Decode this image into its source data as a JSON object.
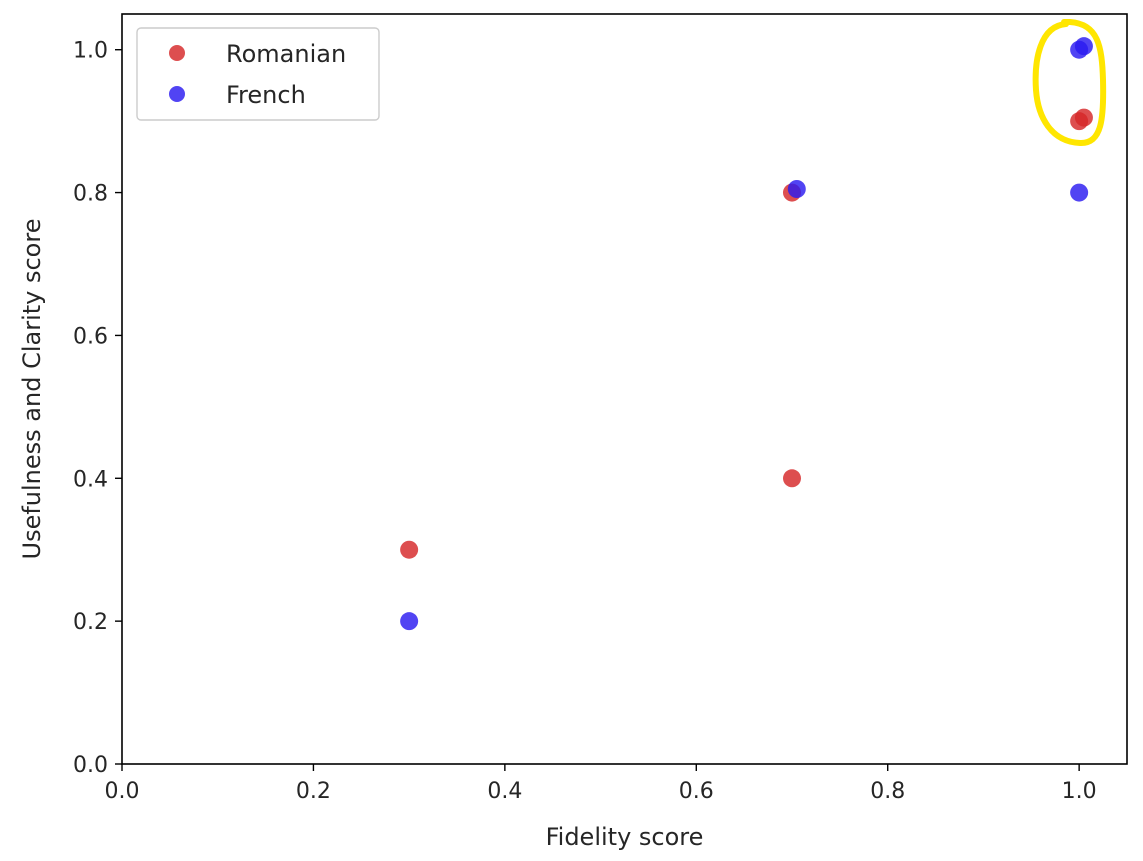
{
  "chart_data": {
    "type": "scatter",
    "title": "",
    "xlabel": "Fidelity score",
    "ylabel": "Usefulness and Clarity score",
    "xlim": [
      0.0,
      1.05
    ],
    "ylim": [
      0.0,
      1.05
    ],
    "xticks": [
      "0.0",
      "0.2",
      "0.4",
      "0.6",
      "0.8",
      "1.0"
    ],
    "yticks": [
      "0.0",
      "0.2",
      "0.4",
      "0.6",
      "0.8",
      "1.0"
    ],
    "grid": false,
    "legend_position": "top-left",
    "series": [
      {
        "name": "Romanian",
        "color": "#d62728",
        "points": [
          {
            "x": 0.3,
            "y": 0.3
          },
          {
            "x": 0.7,
            "y": 0.8
          },
          {
            "x": 0.7,
            "y": 0.4
          },
          {
            "x": 1.0,
            "y": 0.9
          },
          {
            "x": 1.005,
            "y": 0.905
          }
        ]
      },
      {
        "name": "French",
        "color": "#2b1bf0",
        "points": [
          {
            "x": 0.3,
            "y": 0.2
          },
          {
            "x": 0.705,
            "y": 0.805
          },
          {
            "x": 1.0,
            "y": 1.0
          },
          {
            "x": 1.005,
            "y": 1.005
          },
          {
            "x": 1.0,
            "y": 0.8
          }
        ]
      }
    ],
    "annotation": {
      "type": "hand-drawn highlight",
      "color": "#ffe600",
      "around": "points near (1.0, 0.9)–(1.0, 1.0)"
    }
  }
}
